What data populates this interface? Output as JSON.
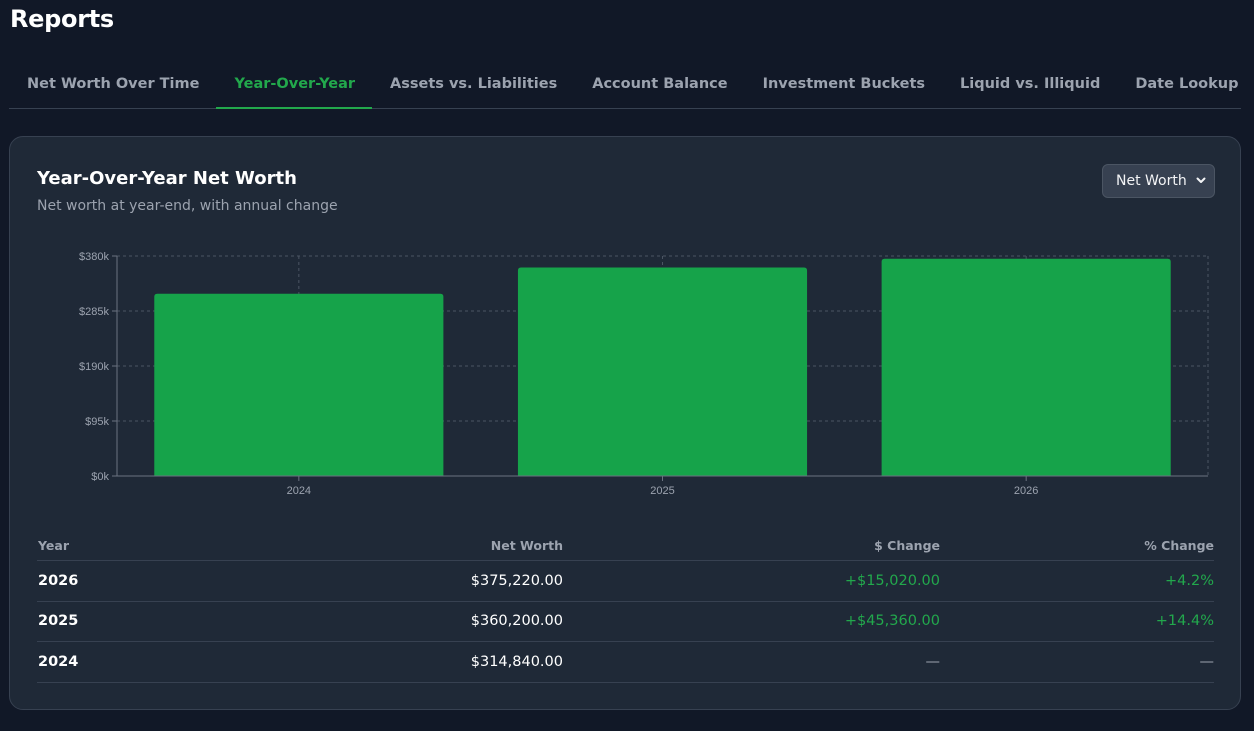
{
  "page": {
    "title": "Reports"
  },
  "tabs": [
    {
      "label": "Net Worth Over Time",
      "active": false
    },
    {
      "label": "Year-Over-Year",
      "active": true
    },
    {
      "label": "Assets vs. Liabilities",
      "active": false
    },
    {
      "label": "Account Balance",
      "active": false
    },
    {
      "label": "Investment Buckets",
      "active": false
    },
    {
      "label": "Liquid vs. Illiquid",
      "active": false
    },
    {
      "label": "Date Lookup",
      "active": false
    }
  ],
  "card": {
    "title": "Year-Over-Year Net Worth",
    "subtitle": "Net worth at year-end, with annual change",
    "metric_select": {
      "value": "Net Worth",
      "icon": "chevron-down-icon"
    }
  },
  "colors": {
    "accent": "#22a84c",
    "bar": "#16a34a"
  },
  "chart_data": {
    "type": "bar",
    "categories": [
      "2024",
      "2025",
      "2026"
    ],
    "values": [
      314840,
      360200,
      375220
    ],
    "ylim": [
      0,
      380000
    ],
    "yticks": [
      0,
      95000,
      190000,
      285000,
      380000
    ],
    "ytick_labels": [
      "$0k",
      "$95k",
      "$190k",
      "$285k",
      "$380k"
    ],
    "grid": true
  },
  "table": {
    "headers": {
      "year": "Year",
      "net_worth": "Net Worth",
      "change": "$ Change",
      "pct": "% Change"
    },
    "rows": [
      {
        "year": "2026",
        "net_worth": "$375,220.00",
        "change": "+$15,020.00",
        "pct": "+4.2%"
      },
      {
        "year": "2025",
        "net_worth": "$360,200.00",
        "change": "+$45,360.00",
        "pct": "+14.4%"
      },
      {
        "year": "2024",
        "net_worth": "$314,840.00",
        "change": "—",
        "pct": "—"
      }
    ]
  }
}
